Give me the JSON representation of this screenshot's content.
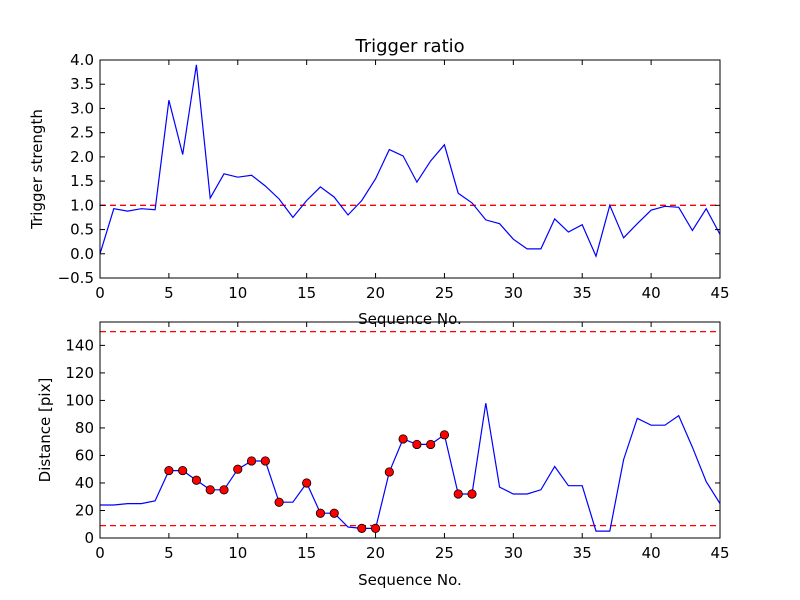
{
  "chart_data": [
    {
      "type": "line",
      "title": "Trigger ratio",
      "xlabel": "Sequence No.",
      "ylabel": "Trigger strength",
      "xlim": [
        0,
        45
      ],
      "ylim": [
        -0.5,
        4.0
      ],
      "xticks": [
        0,
        5,
        10,
        15,
        20,
        25,
        30,
        35,
        40,
        45
      ],
      "yticks": [
        -0.5,
        0.0,
        0.5,
        1.0,
        1.5,
        2.0,
        2.5,
        3.0,
        3.5,
        4.0
      ],
      "ytick_labels": [
        "−0.5",
        "0.0",
        "0.5",
        "1.0",
        "1.5",
        "2.0",
        "2.5",
        "3.0",
        "3.5",
        "4.0"
      ],
      "grid": false,
      "series": [
        {
          "color": "#0000ff",
          "x": [
            0,
            1,
            2,
            3,
            4,
            5,
            6,
            7,
            8,
            9,
            10,
            11,
            12,
            13,
            14,
            15,
            16,
            17,
            18,
            19,
            20,
            21,
            22,
            23,
            24,
            25,
            26,
            27,
            28,
            29,
            30,
            31,
            32,
            33,
            34,
            35,
            36,
            37,
            38,
            39,
            40,
            41,
            42,
            43,
            44,
            45
          ],
          "values": [
            0.0,
            0.93,
            0.88,
            0.93,
            0.91,
            3.17,
            2.05,
            3.9,
            1.15,
            1.65,
            1.58,
            1.62,
            1.4,
            1.13,
            0.75,
            1.1,
            1.38,
            1.17,
            0.8,
            1.1,
            1.55,
            2.15,
            2.02,
            1.48,
            1.92,
            2.25,
            1.25,
            1.05,
            0.7,
            0.62,
            0.3,
            0.1,
            0.1,
            0.72,
            0.45,
            0.6,
            -0.05,
            1.0,
            0.33,
            0.62,
            0.9,
            0.98,
            0.96,
            0.48,
            0.93,
            0.4
          ]
        }
      ],
      "hlines": [
        {
          "y": 1.0,
          "color": "#ff0000",
          "style": "dashed"
        }
      ]
    },
    {
      "type": "line",
      "title": "",
      "xlabel": "Sequence No.",
      "ylabel": "Distance [pix]",
      "xlim": [
        0,
        45
      ],
      "ylim": [
        0,
        157
      ],
      "xticks": [
        0,
        5,
        10,
        15,
        20,
        25,
        30,
        35,
        40,
        45
      ],
      "yticks": [
        0,
        20,
        40,
        60,
        80,
        100,
        120,
        140
      ],
      "ytick_labels": [
        "0",
        "20",
        "40",
        "60",
        "80",
        "100",
        "120",
        "140"
      ],
      "grid": false,
      "series": [
        {
          "color": "#0000ff",
          "x": [
            0,
            1,
            2,
            3,
            4,
            5,
            6,
            7,
            8,
            9,
            10,
            11,
            12,
            13,
            14,
            15,
            16,
            17,
            18,
            19,
            20,
            21,
            22,
            23,
            24,
            25,
            26,
            27,
            28,
            29,
            30,
            31,
            32,
            33,
            34,
            35,
            36,
            37,
            38,
            39,
            40,
            41,
            42,
            43,
            44,
            45
          ],
          "values": [
            24,
            24,
            25,
            25,
            27,
            49,
            49,
            42,
            35,
            35,
            50,
            56,
            56,
            26,
            26,
            40,
            18,
            18,
            8,
            7,
            7,
            48,
            72,
            68,
            68,
            75,
            32,
            32,
            98,
            37,
            32,
            32,
            35,
            52,
            38,
            38,
            5,
            5,
            57,
            87,
            82,
            82,
            89,
            66,
            41,
            25
          ]
        }
      ],
      "markers": {
        "color": "#ff0000",
        "x": [
          5,
          6,
          7,
          8,
          9,
          10,
          11,
          12,
          13,
          15,
          16,
          17,
          19,
          20,
          21,
          22,
          23,
          24,
          25,
          26,
          27
        ],
        "values": [
          49,
          49,
          42,
          35,
          35,
          50,
          56,
          56,
          26,
          40,
          18,
          18,
          7,
          7,
          48,
          72,
          68,
          68,
          75,
          32,
          32
        ]
      },
      "hlines": [
        {
          "y": 150,
          "color": "#ff0000",
          "style": "dashed"
        },
        {
          "y": 9,
          "color": "#ff0000",
          "style": "dashed"
        }
      ]
    }
  ]
}
